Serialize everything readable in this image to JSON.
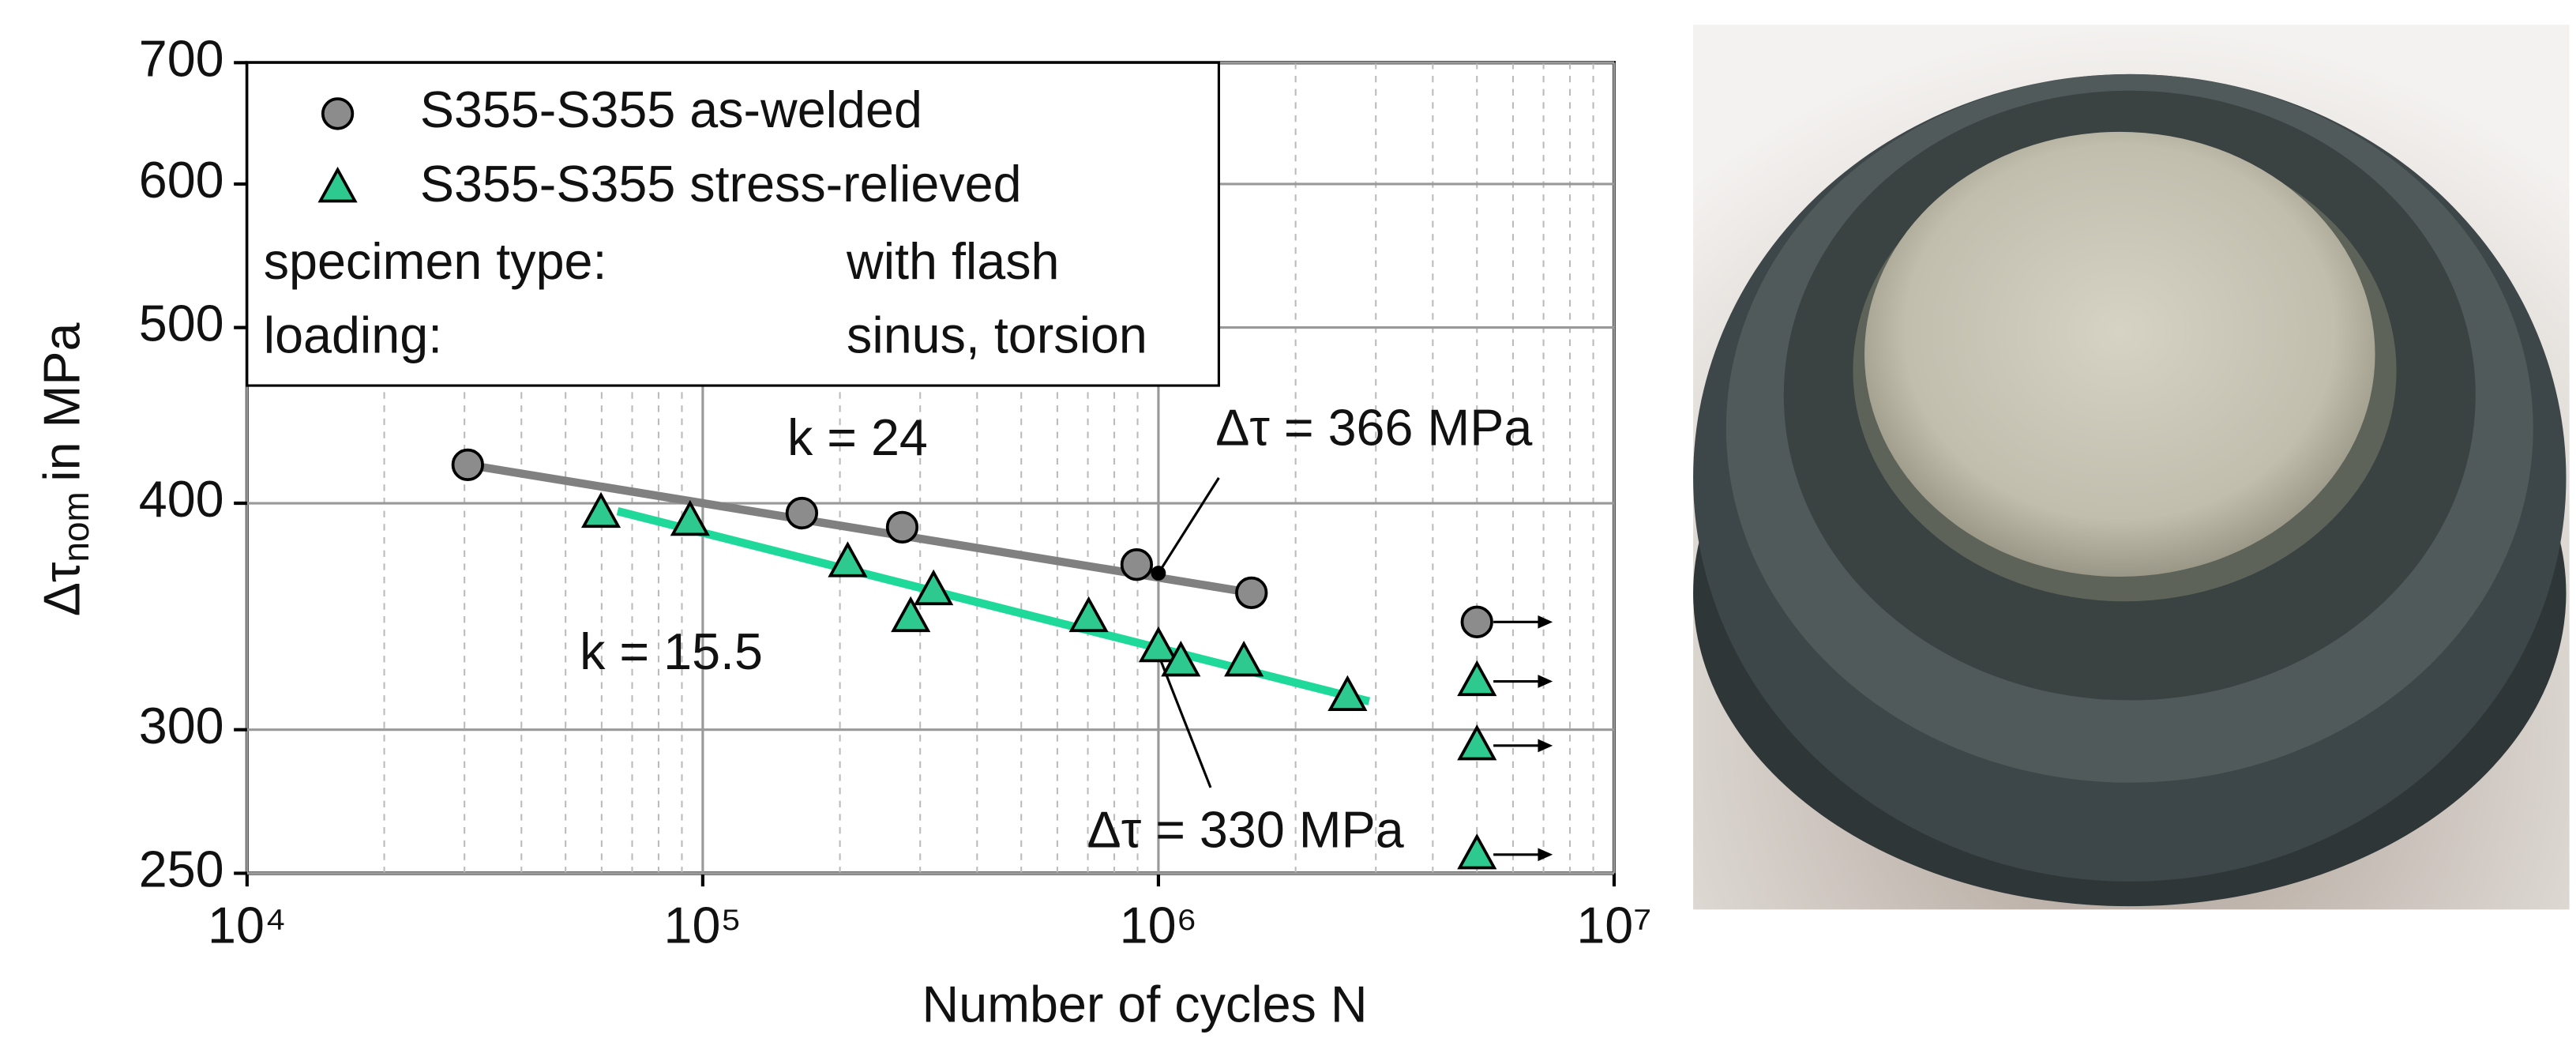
{
  "chart_data": {
    "type": "scatter",
    "xlabel": "Number of cycles N",
    "ylabel": {
      "symbol": "Δτ",
      "subscript": "nom",
      "rest": "in MPa"
    },
    "xscale": "log",
    "yscale": "log",
    "grid": true,
    "xlim": [
      10000,
      10000000
    ],
    "ylim": [
      250,
      700
    ],
    "xticks": [
      {
        "value": 10000,
        "label": "10⁴"
      },
      {
        "value": 100000,
        "label": "10⁵"
      },
      {
        "value": 1000000,
        "label": "10⁶"
      },
      {
        "value": 10000000,
        "label": "10⁷"
      }
    ],
    "xminorticks": [
      20000,
      30000,
      40000,
      50000,
      60000,
      70000,
      80000,
      90000,
      200000,
      300000,
      400000,
      500000,
      600000,
      700000,
      800000,
      900000,
      2000000,
      3000000,
      4000000,
      5000000,
      6000000,
      7000000,
      8000000,
      9000000
    ],
    "yticks": [
      250,
      300,
      400,
      500,
      600,
      700
    ],
    "series": [
      {
        "name": "S355-S355 as-welded",
        "marker": "circle",
        "color": "#8c8c8c",
        "x": [
          30500,
          165000,
          274000,
          896000,
          1600000
        ],
        "y": [
          420,
          395,
          388,
          370,
          357
        ]
      },
      {
        "name": "S355-S355 stress-relieved",
        "marker": "triangle",
        "color": "#2ec98e",
        "x": [
          59800,
          93800,
          208000,
          321000,
          286000,
          703000,
          1000000,
          1120000,
          1540000,
          2600000
        ],
        "y": [
          395,
          391,
          371,
          358,
          346,
          346,
          333,
          327,
          327,
          313
        ]
      }
    ],
    "runouts": [
      {
        "marker": "circle",
        "color": "#8c8c8c",
        "x": [
          5000000
        ],
        "y": [
          344
        ]
      },
      {
        "marker": "triangle",
        "color": "#2ec98e",
        "x": [
          5000000,
          5000000,
          5000000
        ],
        "y": [
          319,
          294,
          256
        ]
      }
    ],
    "fit_lines": [
      {
        "color": "#808080",
        "x": [
          30500,
          1600000
        ],
        "y": [
          420,
          357
        ],
        "label": "k = 24"
      },
      {
        "color": "#1ed99a",
        "x": [
          65000,
          2900000
        ],
        "y": [
          396,
          311
        ],
        "label": "k = 15.5"
      }
    ],
    "annotations": [
      {
        "text": "Δτ = 366 MPa",
        "x": 1000000,
        "y": 366
      },
      {
        "text": "Δτ = 330 MPa",
        "x": 1000000,
        "y": 330
      }
    ],
    "legend_notes": [
      [
        "specimen type:",
        "with flash"
      ],
      [
        "loading:",
        "sinus, torsion"
      ]
    ],
    "legend": "upper left"
  }
}
